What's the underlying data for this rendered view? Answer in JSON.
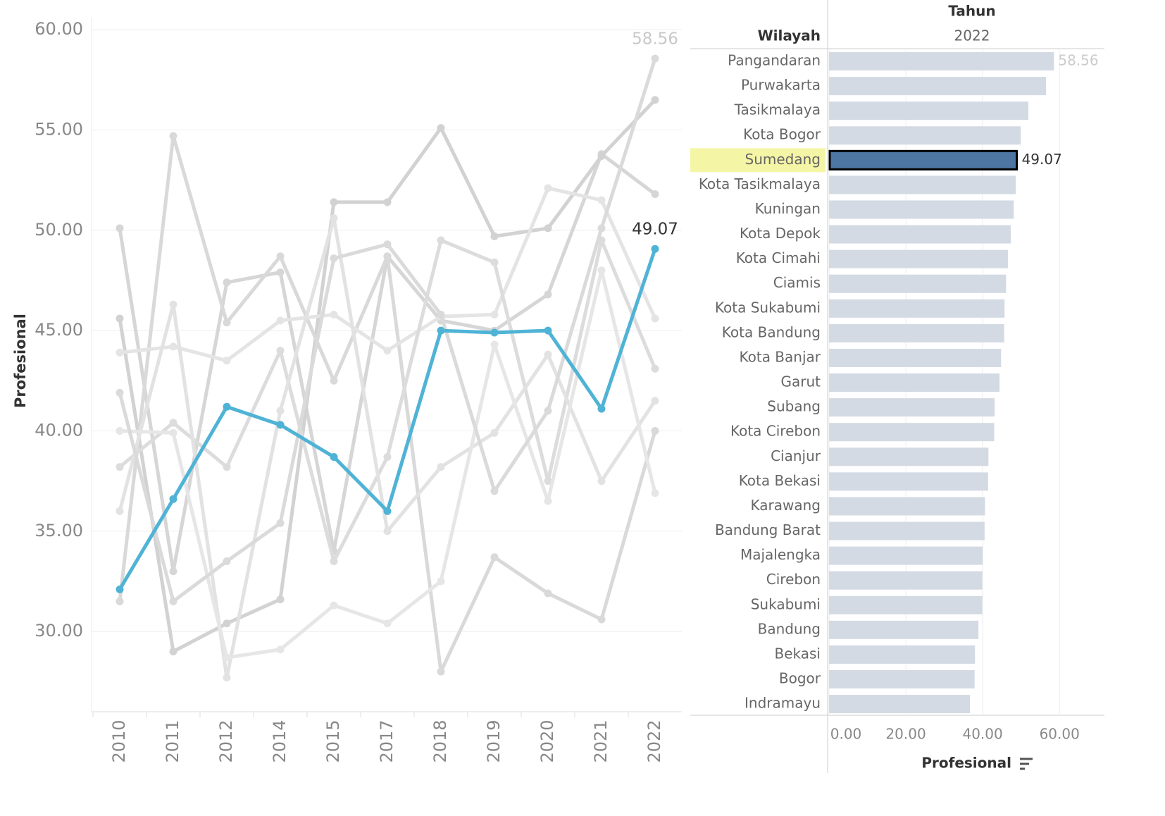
{
  "line_chart": {
    "type": "line",
    "y_label": "Profesional",
    "categories": [
      "2010",
      "2011",
      "2012",
      "2014",
      "2015",
      "2017",
      "2018",
      "2019",
      "2020",
      "2021",
      "2022"
    ],
    "ylim": [
      26,
      60.6
    ],
    "yticks": [
      {
        "value": 30,
        "label": "30.00"
      },
      {
        "value": 35,
        "label": "35.00"
      },
      {
        "value": 40,
        "label": "40.00"
      },
      {
        "value": 45,
        "label": "45.00"
      },
      {
        "value": 50,
        "label": "50.00"
      },
      {
        "value": 55,
        "label": "55.00"
      },
      {
        "value": 60,
        "label": "60.00"
      }
    ],
    "grid": true,
    "series": [
      {
        "color": "#d6d6d6",
        "values": [
          50.1,
          33.0,
          47.4,
          47.9,
          34.0,
          48.7,
          45.5,
          45.0,
          46.8,
          53.8,
          51.8
        ]
      },
      {
        "color": "#d2d2d2",
        "values": [
          45.6,
          29.0,
          30.4,
          31.6,
          51.4,
          51.4,
          55.1,
          49.7,
          50.1,
          53.7,
          56.5
        ]
      },
      {
        "color": "#d9d9d9",
        "values": [
          31.5,
          54.7,
          45.4,
          48.7,
          42.5,
          48.7,
          28.0,
          33.7,
          31.9,
          30.6,
          40.0
        ]
      },
      {
        "color": "#e4e4e4",
        "values": [
          43.9,
          44.2,
          43.5,
          45.5,
          45.8,
          44.0,
          45.7,
          45.8,
          52.1,
          51.5,
          45.6
        ]
      },
      {
        "color": "#dcdcdc",
        "values": [
          38.2,
          40.4,
          38.2,
          44.0,
          33.5,
          38.7,
          49.5,
          48.4,
          37.5,
          49.5,
          43.1
        ]
      },
      {
        "color": "#e2e2e2",
        "values": [
          36.0,
          46.3,
          27.7,
          41.0,
          50.6,
          35.0,
          38.2,
          39.9,
          43.8,
          37.5,
          41.5
        ]
      },
      {
        "color": "#e6e6e6",
        "values": [
          40.0,
          39.9,
          28.7,
          29.1,
          31.3,
          30.4,
          32.5,
          44.3,
          36.5,
          48.0,
          36.9
        ]
      },
      {
        "color": "#dadada",
        "values": [
          41.9,
          31.5,
          33.5,
          35.4,
          48.6,
          49.3,
          45.8,
          37.0,
          41.0,
          50.1,
          58.56
        ],
        "value_labels": [
          null,
          null,
          null,
          null,
          null,
          null,
          null,
          null,
          null,
          null,
          "58.56"
        ],
        "label_color": "#c8c8c8"
      },
      {
        "color": "#4fb3d6",
        "values": [
          32.1,
          36.6,
          41.2,
          40.3,
          38.7,
          36.0,
          45.0,
          44.9,
          45.0,
          41.1,
          49.07
        ],
        "value_labels": [
          null,
          null,
          null,
          null,
          null,
          null,
          null,
          null,
          null,
          null,
          "49.07"
        ],
        "label_color": "#333333"
      }
    ]
  },
  "bar_chart": {
    "type": "hbar",
    "column_header": "Tahun",
    "column_value": "2022",
    "row_header": "Wilayah",
    "x_label": "Profesional",
    "categories": [
      "Pangandaran",
      "Purwakarta",
      "Tasikmalaya",
      "Kota Bogor",
      "Sumedang",
      "Kota Tasikmalaya",
      "Kuningan",
      "Kota Depok",
      "Kota Cimahi",
      "Ciamis",
      "Kota Sukabumi",
      "Kota Bandung",
      "Kota Banjar",
      "Garut",
      "Subang",
      "Kota Cirebon",
      "Cianjur",
      "Kota Bekasi",
      "Karawang",
      "Bandung Barat",
      "Majalengka",
      "Cirebon",
      "Sukabumi",
      "Bandung",
      "Bekasi",
      "Bogor",
      "Indramayu"
    ],
    "values": [
      58.56,
      56.5,
      51.9,
      49.9,
      49.07,
      48.6,
      48.1,
      47.3,
      46.6,
      46.1,
      45.7,
      45.6,
      44.8,
      44.4,
      43.1,
      43.0,
      41.5,
      41.4,
      40.6,
      40.5,
      40.0,
      39.9,
      39.9,
      38.9,
      38.0,
      37.9,
      36.7
    ],
    "value_labels": [
      "58.56",
      null,
      null,
      null,
      "49.07",
      null,
      null,
      null,
      null,
      null,
      null,
      null,
      null,
      null,
      null,
      null,
      null,
      null,
      null,
      null,
      null,
      null,
      null,
      null,
      null,
      null,
      null
    ],
    "color": "#d3dae3",
    "highlight_color": "#4e76a3",
    "highlight_index": 4,
    "xlim": [
      0,
      71.7
    ],
    "xticks": [
      {
        "value": 0,
        "label": "0.00"
      },
      {
        "value": 20,
        "label": "20.00"
      },
      {
        "value": 40,
        "label": "40.00"
      },
      {
        "value": 60,
        "label": "60.00"
      }
    ],
    "grid": true
  }
}
